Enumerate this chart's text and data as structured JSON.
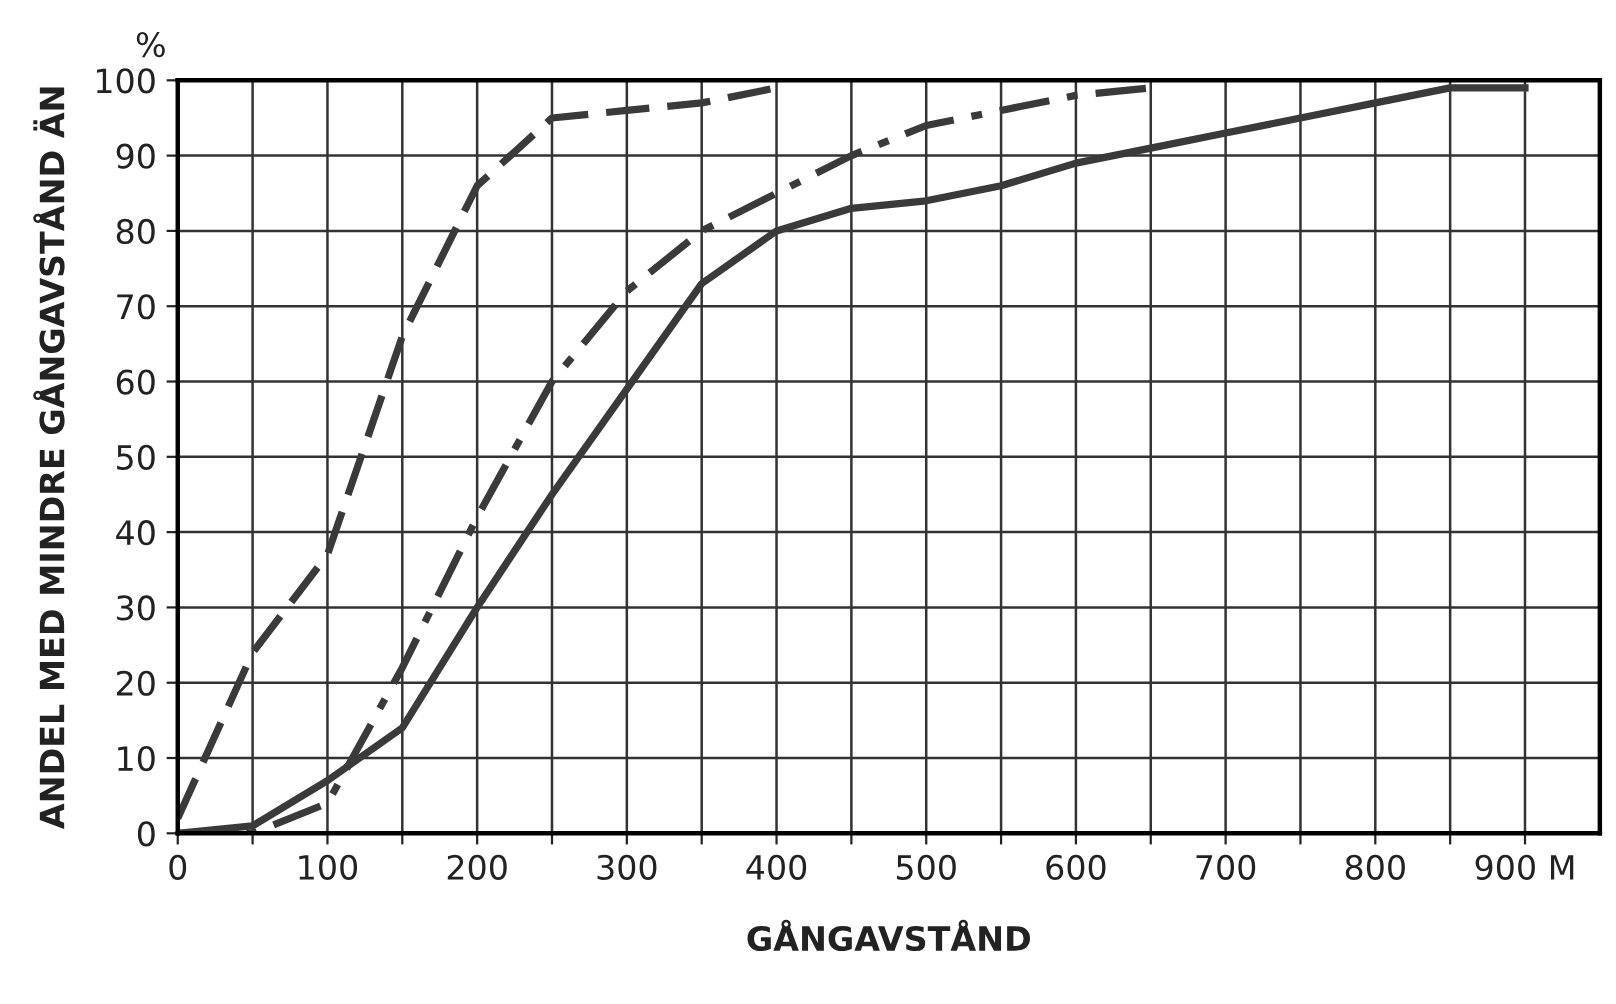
{
  "chart_data": {
    "type": "line",
    "xlabel": "GÅNGAVSTÅND",
    "ylabel": "ANDEL MED MINDRE GÅNGAVSTÅND ÄN",
    "annotations": [
      "%"
    ],
    "xlim": [
      0,
      950
    ],
    "ylim": [
      0,
      100
    ],
    "xticks": [
      0,
      {
        "value": 50,
        "label": null
      },
      100,
      {
        "value": 150,
        "label": null
      },
      200,
      {
        "value": 250,
        "label": null
      },
      300,
      {
        "value": 350,
        "label": null
      },
      400,
      {
        "value": 450,
        "label": null
      },
      500,
      {
        "value": 550,
        "label": null
      },
      600,
      {
        "value": 650,
        "label": null
      },
      700,
      {
        "value": 750,
        "label": null
      },
      800,
      {
        "value": 850,
        "label": null
      },
      {
        "value": 900,
        "label": "900 M"
      }
    ],
    "yticks": [
      0,
      10,
      20,
      30,
      40,
      50,
      60,
      70,
      80,
      90,
      100
    ],
    "grid": true,
    "series": [
      {
        "color": "#3a3a3a",
        "line_style": "dashed",
        "x": [
          0,
          50,
          100,
          150,
          200,
          250,
          300,
          350,
          400
        ],
        "values": [
          2,
          24,
          37,
          66,
          86,
          95,
          96,
          97,
          99
        ]
      },
      {
        "color": "#3a3a3a",
        "line_style": "dashdot",
        "x": [
          0,
          50,
          100,
          150,
          200,
          250,
          300,
          350,
          400,
          450,
          500,
          550,
          600,
          650
        ],
        "values": [
          0,
          0,
          4,
          22,
          42,
          60,
          72,
          80,
          85,
          90,
          94,
          96,
          98,
          99
        ]
      },
      {
        "color": "#3a3a3a",
        "line_style": "solid",
        "x": [
          0,
          50,
          100,
          150,
          200,
          250,
          300,
          350,
          400,
          450,
          500,
          550,
          600,
          650,
          700,
          750,
          800,
          850,
          900
        ],
        "values": [
          0,
          1,
          7,
          14,
          30,
          45,
          59,
          73,
          80,
          83,
          84,
          86,
          89,
          91,
          93,
          95,
          97,
          99,
          99
        ]
      }
    ]
  }
}
